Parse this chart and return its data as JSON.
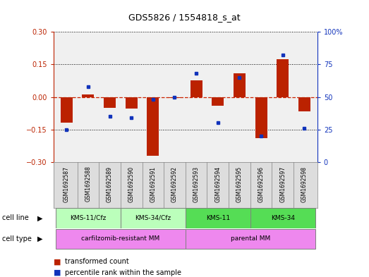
{
  "title": "GDS5826 / 1554818_s_at",
  "samples": [
    "GSM1692587",
    "GSM1692588",
    "GSM1692589",
    "GSM1692590",
    "GSM1692591",
    "GSM1692592",
    "GSM1692593",
    "GSM1692594",
    "GSM1692595",
    "GSM1692596",
    "GSM1692597",
    "GSM1692598"
  ],
  "transformed_count": [
    -0.12,
    0.01,
    -0.05,
    -0.055,
    -0.27,
    -0.005,
    0.075,
    -0.04,
    0.11,
    -0.19,
    0.175,
    -0.065
  ],
  "percentile_rank": [
    25,
    58,
    35,
    34,
    48,
    50,
    68,
    30,
    65,
    20,
    82,
    26
  ],
  "ylim_left": [
    -0.3,
    0.3
  ],
  "ylim_right": [
    0,
    100
  ],
  "yticks_left": [
    -0.3,
    -0.15,
    0.0,
    0.15,
    0.3
  ],
  "yticks_right": [
    0,
    25,
    50,
    75,
    100
  ],
  "bar_color": "#bb2200",
  "dot_color": "#1133bb",
  "hline_color": "#cc2200",
  "grid_color": "#000000",
  "left_label_color": "#bb2200",
  "right_label_color": "#1133bb",
  "chart_bg": "#f0f0f0",
  "sample_box_bg": "#dddddd",
  "cl_colors": [
    "#bbffbb",
    "#bbffbb",
    "#55dd55",
    "#55dd55"
  ],
  "cl_labels": [
    "KMS-11/Cfz",
    "KMS-34/Cfz",
    "KMS-11",
    "KMS-34"
  ],
  "cl_ranges": [
    [
      0,
      2
    ],
    [
      3,
      5
    ],
    [
      6,
      8
    ],
    [
      9,
      11
    ]
  ],
  "ct_colors": [
    "#ee88ee",
    "#ee88ee"
  ],
  "ct_labels": [
    "carfilzomib-resistant MM",
    "parental MM"
  ],
  "ct_ranges": [
    [
      0,
      5
    ],
    [
      6,
      11
    ]
  ]
}
